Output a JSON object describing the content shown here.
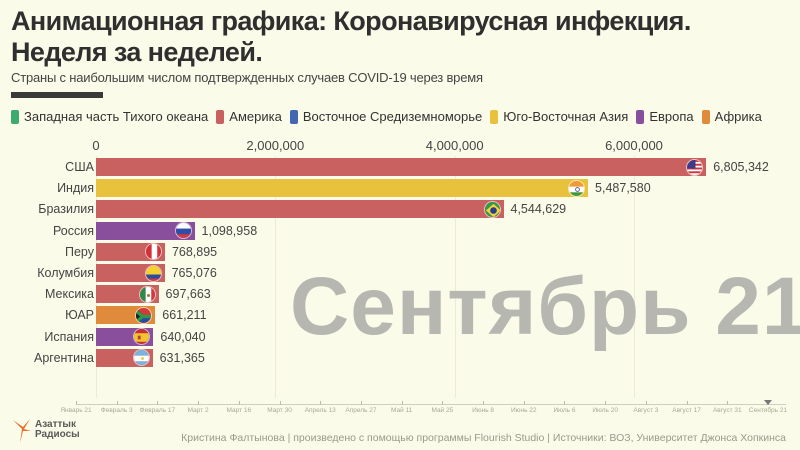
{
  "header": {
    "title_line1": "Анимационная графика: Коронавирусная инфекция.",
    "title_line2": "Неделя за неделей.",
    "subtitle": "Страны с наибольшим числом подтвержденных случаев COVID-19 через время"
  },
  "legend": [
    {
      "label": "Западная часть Тихого океана",
      "color": "#3daa6e"
    },
    {
      "label": "Америка",
      "color": "#c96161"
    },
    {
      "label": "Восточное Средиземноморье",
      "color": "#4566b0"
    },
    {
      "label": "Юго-Восточная Азия",
      "color": "#e8c23d"
    },
    {
      "label": "Европа",
      "color": "#8a4f9c"
    },
    {
      "label": "Африка",
      "color": "#e08a3c"
    }
  ],
  "current_date": "Сентябрь 21",
  "timeline": {
    "labels": [
      "Январь 21",
      "Февраль 3",
      "Февраль 17",
      "Март 2",
      "Март 16",
      "Март 30",
      "Апрель 13",
      "Апрель 27",
      "Май 11",
      "Май 25",
      "Июнь 8",
      "Июнь 22",
      "Июль 6",
      "Июль 20",
      "Август 3",
      "Август 17",
      "Август 31",
      "Сентябрь 21"
    ]
  },
  "footer": {
    "logo_line1": "Азаттык",
    "logo_line2": "Радиосы",
    "credits": "Кристина Фалтынова | произведено с помощью программы Flourish Studio | Источники: ВОЗ, Университет Джонса Хопкинса"
  },
  "chart_data": {
    "type": "bar",
    "orientation": "horizontal",
    "title": "Анимационная графика: Коронавирусная инфекция. Неделя за неделей.",
    "subtitle": "Страны с наибольшим числом подтвержденных случаев COVID-19 через время",
    "xlabel": "",
    "ylabel": "",
    "x_ticks": [
      "0",
      "2,000,000",
      "4,000,000",
      "6,000,000"
    ],
    "x_tick_values": [
      0,
      2000000,
      4000000,
      6000000
    ],
    "xlim": [
      0,
      7000000
    ],
    "grid": true,
    "legend_position": "top",
    "categories": [
      "США",
      "Индия",
      "Бразилия",
      "Россия",
      "Перу",
      "Колумбия",
      "Мексика",
      "ЮАР",
      "Испания",
      "Аргентина"
    ],
    "values": [
      6805342,
      5487580,
      4544629,
      1098958,
      768895,
      765076,
      697663,
      661211,
      640040,
      631365
    ],
    "value_labels": [
      "6,805,342",
      "5,487,580",
      "4,544,629",
      "1,098,958",
      "768,895",
      "765,076",
      "697,663",
      "661,211",
      "640,040",
      "631,365"
    ],
    "regions": [
      "Америка",
      "Юго-Восточная Азия",
      "Америка",
      "Европа",
      "Америка",
      "Америка",
      "Америка",
      "Африка",
      "Европа",
      "Америка"
    ],
    "bar_colors": [
      "#c96161",
      "#e8c23d",
      "#c96161",
      "#8a4f9c",
      "#c96161",
      "#c96161",
      "#c96161",
      "#e08a3c",
      "#8a4f9c",
      "#c96161"
    ],
    "flags": [
      "us-flag-icon",
      "india-flag-icon",
      "brazil-flag-icon",
      "russia-flag-icon",
      "peru-flag-icon",
      "colombia-flag-icon",
      "mexico-flag-icon",
      "south-africa-flag-icon",
      "spain-flag-icon",
      "argentina-flag-icon"
    ],
    "annotation": "Сентябрь 21"
  }
}
